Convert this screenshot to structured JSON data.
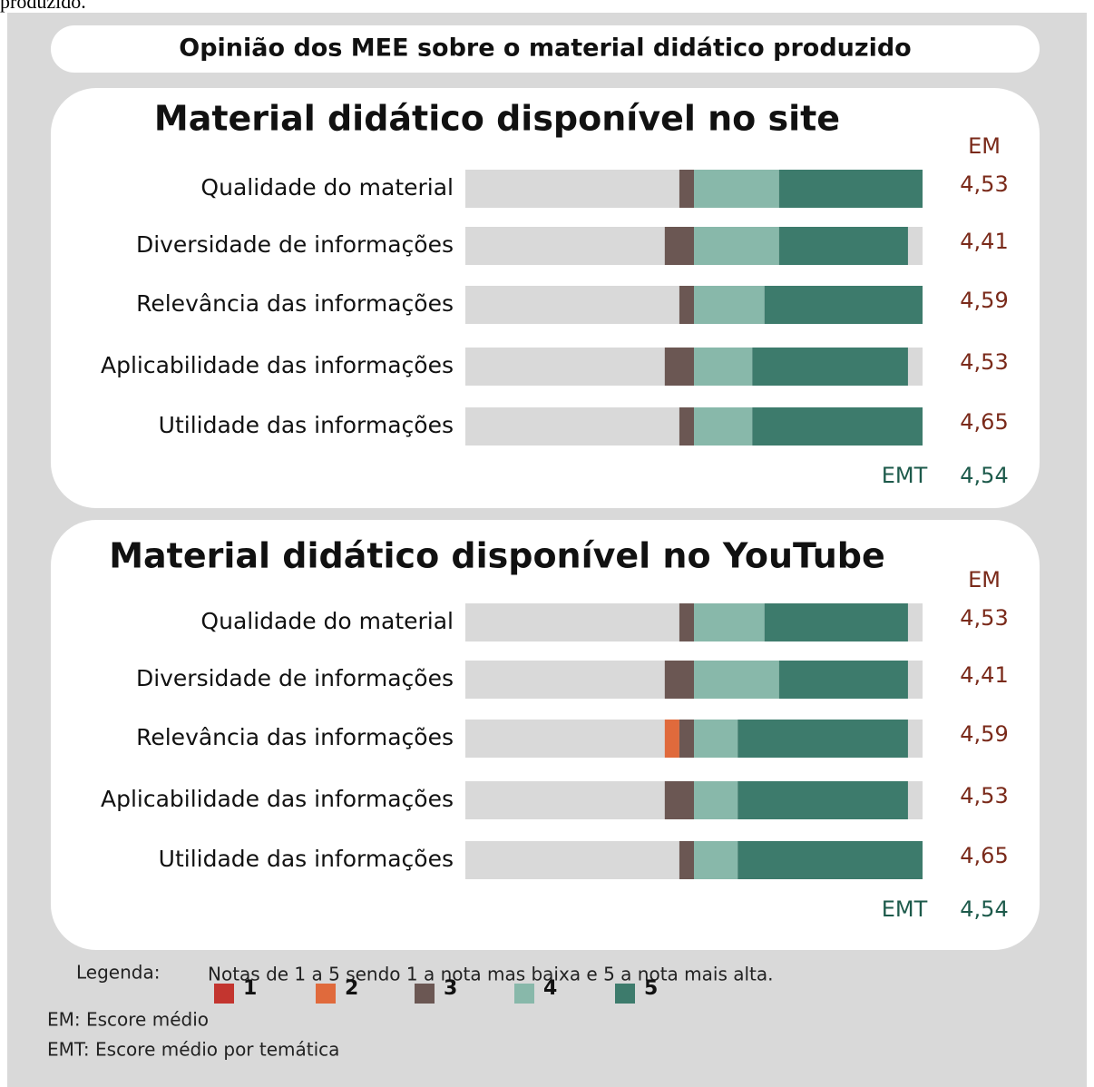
{
  "caption": "produzido.",
  "title": "Opinião dos MEE sobre o material didático produzido",
  "chart_data": [
    {
      "type": "stacked-bar",
      "title": "Material didático disponível no site",
      "categories": [
        "Qualidade do material",
        "Diversidade de informações",
        "Relevância das informações",
        "Aplicabilidade das informações",
        "Utilidade das informações"
      ],
      "xlim": [
        -94,
        94
      ],
      "series": [
        {
          "name": "1",
          "color": "#c3352f",
          "values": [
            0,
            0,
            0,
            0,
            0
          ]
        },
        {
          "name": "2",
          "color": "#e06a3c",
          "values": [
            0,
            0,
            0,
            0,
            0
          ]
        },
        {
          "name": "3",
          "color": "#6b5753",
          "values": [
            6,
            12,
            6,
            12,
            6
          ]
        },
        {
          "name": "4",
          "color": "#88b8aa",
          "values": [
            35,
            35,
            29,
            24,
            24
          ]
        },
        {
          "name": "5",
          "color": "#3d7b6c",
          "values": [
            59,
            53,
            65,
            64,
            70
          ]
        }
      ],
      "em_title": "EM",
      "em": [
        4.53,
        4.41,
        4.59,
        4.53,
        4.65
      ],
      "em_labels": [
        "4,53",
        "4,41",
        "4,59",
        "4,53",
        "4,65"
      ],
      "emt_title": "EMT",
      "emt": 4.54,
      "emt_label": "4,54"
    },
    {
      "type": "stacked-bar",
      "title": "Material didático disponível no YouTube",
      "categories": [
        "Qualidade do material",
        "Diversidade de informações",
        "Relevância das informações",
        "Aplicabilidade das informações",
        "Utilidade das informações"
      ],
      "xlim": [
        -94,
        94
      ],
      "series": [
        {
          "name": "1",
          "color": "#c3352f",
          "values": [
            0,
            0,
            0,
            0,
            0
          ]
        },
        {
          "name": "2",
          "color": "#e06a3c",
          "values": [
            0,
            0,
            6,
            0,
            0
          ]
        },
        {
          "name": "3",
          "color": "#6b5753",
          "values": [
            6,
            12,
            6,
            12,
            6
          ]
        },
        {
          "name": "4",
          "color": "#88b8aa",
          "values": [
            29,
            35,
            18,
            18,
            18
          ]
        },
        {
          "name": "5",
          "color": "#3d7b6c",
          "values": [
            59,
            53,
            70,
            70,
            76
          ]
        }
      ],
      "em_title": "EM",
      "em": [
        4.53,
        4.41,
        4.59,
        4.53,
        4.65
      ],
      "em_labels": [
        "4,53",
        "4,41",
        "4,59",
        "4,53",
        "4,65"
      ],
      "emt_title": "EMT",
      "emt": 4.54,
      "emt_label": "4,54"
    }
  ],
  "legend": {
    "title": "Legenda:",
    "note": "Notas de 1 a 5 sendo 1 a nota mas baixa e 5 a nota mais alta.",
    "em_def": "EM: Escore médio",
    "emt_def": "EMT: Escore médio por temática"
  }
}
